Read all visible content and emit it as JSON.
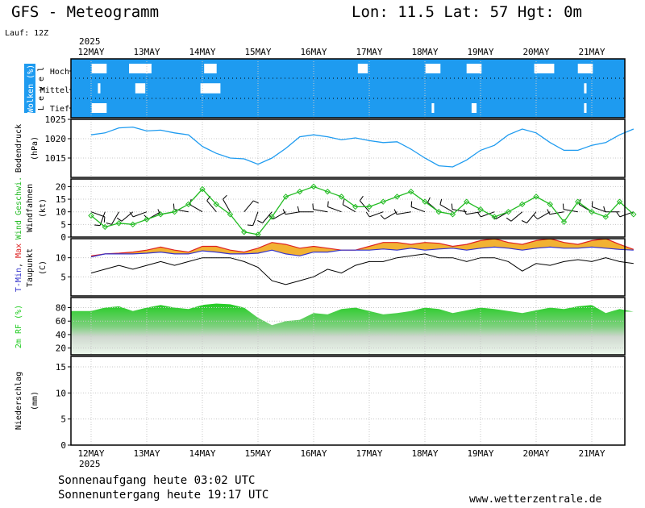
{
  "header": {
    "title": "GFS - Meteogramm",
    "location": "Lon: 11.5 Lat: 57 Hgt: 0m",
    "run": "Lauf: 12Z",
    "year": "2025"
  },
  "footer": {
    "sunrise": "Sonnenaufgang heute 03:02 UTC",
    "sunset": "Sonnenuntergang heute 19:17 UTC",
    "website": "www.wetterzentrale.de"
  },
  "colors": {
    "cloud": "#1e9bf0",
    "pressure": "#1e9bf0",
    "wind": "#22bb22",
    "tmin": "#3333cc",
    "tmax": "#dd2222",
    "temp_fill": "#f2b233",
    "rh": "#22cc22"
  },
  "chart_data": [
    {
      "type": "heatmap",
      "panel": "clouds",
      "ylabel": "Wolken (%)",
      "level_axis_label": "L e v e l",
      "levels": [
        "Hoch",
        "Mittel",
        "Tief"
      ],
      "days": [
        "12MAY",
        "13MAY",
        "14MAY",
        "15MAY",
        "16MAY",
        "17MAY",
        "18MAY",
        "19MAY",
        "20MAY",
        "21MAY"
      ],
      "hoch_cover": [
        0.7,
        0.55,
        0.75,
        1.0,
        1.0,
        0.8,
        0.7,
        0.7,
        0.6,
        0.7
      ],
      "mittel_cover": [
        0.95,
        0.8,
        0.6,
        1.0,
        1.0,
        1.0,
        1.0,
        1.0,
        1.0,
        0.95
      ],
      "tief_cover": [
        0.7,
        1.0,
        1.0,
        1.0,
        1.0,
        1.0,
        0.95,
        0.9,
        1.0,
        0.95
      ]
    },
    {
      "type": "line",
      "panel": "pressure",
      "ylabel": "Bodendruck",
      "unit": "(hPa)",
      "ylim": [
        1010,
        1025
      ],
      "yticks": [
        1015,
        1020,
        1025
      ],
      "x": [
        0,
        0.25,
        0.5,
        0.75,
        1,
        1.25,
        1.5,
        1.75,
        2,
        2.25,
        2.5,
        2.75,
        3,
        3.25,
        3.5,
        3.75,
        4,
        4.25,
        4.5,
        4.75,
        5,
        5.25,
        5.5,
        5.75,
        6,
        6.25,
        6.5,
        6.75,
        7,
        7.25,
        7.5,
        7.75,
        8,
        8.25,
        8.5,
        8.75,
        9,
        9.25,
        9.5,
        9.75
      ],
      "values": [
        1021.0,
        1021.5,
        1022.8,
        1023.0,
        1022.0,
        1022.2,
        1021.5,
        1021.0,
        1018.0,
        1016.2,
        1015.0,
        1014.8,
        1013.4,
        1015.0,
        1017.5,
        1020.5,
        1021.0,
        1020.5,
        1019.7,
        1020.2,
        1019.5,
        1019.0,
        1019.2,
        1017.3,
        1015.0,
        1013.0,
        1012.7,
        1014.5,
        1017.0,
        1018.3,
        1021.0,
        1022.5,
        1021.5,
        1019.0,
        1017.0,
        1017.0,
        1018.3,
        1019.0,
        1021.0,
        1022.5
      ],
      "grid": true
    },
    {
      "type": "line",
      "panel": "wind",
      "ylabel": "Wind Geschwi.",
      "ylabel2": "Windfahnen",
      "unit": "(kt)",
      "ylim": [
        0,
        23
      ],
      "yticks": [
        0,
        5,
        10,
        15,
        20
      ],
      "x": [
        0,
        0.25,
        0.5,
        0.75,
        1,
        1.25,
        1.5,
        1.75,
        2,
        2.25,
        2.5,
        2.75,
        3,
        3.25,
        3.5,
        3.75,
        4,
        4.25,
        4.5,
        4.75,
        5,
        5.25,
        5.5,
        5.75,
        6,
        6.25,
        6.5,
        6.75,
        7,
        7.25,
        7.5,
        7.75,
        8,
        8.25,
        8.5,
        8.75,
        9,
        9.25,
        9.5,
        9.75
      ],
      "values": [
        8.5,
        4.0,
        5.5,
        5.0,
        7.0,
        9.0,
        10.0,
        13.0,
        19.0,
        13.0,
        9.0,
        2.0,
        1.0,
        8.0,
        16.0,
        18.0,
        20.0,
        18.0,
        16.0,
        12.0,
        12.0,
        14.0,
        16.0,
        18.0,
        14.0,
        10.0,
        9.0,
        14.0,
        11.0,
        8.0,
        10.0,
        13.0,
        16.0,
        13.0,
        6.0,
        14.0,
        10.0,
        8.0,
        14.0,
        9.0
      ],
      "barb_directions_deg": [
        110,
        200,
        210,
        230,
        250,
        240,
        260,
        280,
        300,
        320,
        330,
        40,
        200,
        220,
        240,
        260,
        270,
        280,
        290,
        300,
        320,
        250,
        240,
        260,
        290,
        310,
        300,
        280,
        260,
        250,
        240,
        230,
        220,
        240,
        260,
        280,
        300,
        290,
        270,
        250
      ],
      "grid": true
    },
    {
      "type": "line",
      "panel": "temperature",
      "ylabel_parts": [
        "T-Min",
        ", ",
        "Max"
      ],
      "ylabel2": "Taupunkt",
      "unit": "(C)",
      "ylim": [
        0,
        15
      ],
      "yticks": [
        5,
        10
      ],
      "x": [
        0,
        0.25,
        0.5,
        0.75,
        1,
        1.25,
        1.5,
        1.75,
        2,
        2.25,
        2.5,
        2.75,
        3,
        3.25,
        3.5,
        3.75,
        4,
        4.25,
        4.5,
        4.75,
        5,
        5.25,
        5.5,
        5.75,
        6,
        6.25,
        6.5,
        6.75,
        7,
        7.25,
        7.5,
        7.75,
        8,
        8.25,
        8.5,
        8.75,
        9,
        9.25,
        9.5,
        9.75
      ],
      "series": [
        {
          "name": "T-Min",
          "values": [
            10.2,
            11.0,
            11.0,
            11.0,
            11.2,
            11.5,
            11.0,
            11.0,
            11.8,
            11.5,
            11.0,
            11.0,
            11.2,
            12.0,
            11.0,
            10.5,
            11.5,
            11.5,
            12.0,
            12.0,
            12.0,
            12.3,
            12.0,
            12.5,
            12.0,
            12.3,
            12.5,
            12.0,
            12.5,
            12.8,
            12.5,
            12.0,
            12.5,
            12.8,
            12.5,
            12.5,
            12.8,
            12.5,
            12.2,
            12.0
          ]
        },
        {
          "name": "Max",
          "values": [
            10.5,
            11.0,
            11.2,
            11.5,
            12.0,
            12.8,
            12.0,
            11.5,
            13.0,
            13.0,
            12.0,
            11.5,
            12.5,
            14.0,
            13.5,
            12.5,
            13.0,
            12.5,
            12.0,
            12.0,
            13.0,
            14.0,
            14.0,
            13.5,
            14.0,
            13.8,
            13.0,
            13.5,
            14.5,
            15.0,
            14.0,
            13.5,
            14.5,
            15.0,
            14.0,
            13.5,
            14.5,
            15.0,
            13.5,
            12.2
          ]
        },
        {
          "name": "Taupunkt",
          "values": [
            6.0,
            7.0,
            8.0,
            7.0,
            8.0,
            9.0,
            8.0,
            9.0,
            10.0,
            10.0,
            10.0,
            9.0,
            7.5,
            4.0,
            3.0,
            4.0,
            5.0,
            7.0,
            6.0,
            8.0,
            9.0,
            9.0,
            10.0,
            10.5,
            11.0,
            10.0,
            10.0,
            9.0,
            10.0,
            10.0,
            9.0,
            6.5,
            8.5,
            8.0,
            9.0,
            9.5,
            9.0,
            10.0,
            9.0,
            8.5
          ]
        }
      ],
      "grid": true
    },
    {
      "type": "area",
      "panel": "humidity",
      "ylabel": "2m RF (%)",
      "ylim": [
        10,
        95
      ],
      "yticks": [
        20,
        40,
        60,
        80
      ],
      "x": [
        0,
        0.25,
        0.5,
        0.75,
        1,
        1.25,
        1.5,
        1.75,
        2,
        2.25,
        2.5,
        2.75,
        3,
        3.25,
        3.5,
        3.75,
        4,
        4.25,
        4.5,
        4.75,
        5,
        5.25,
        5.5,
        5.75,
        6,
        6.25,
        6.5,
        6.75,
        7,
        7.25,
        7.5,
        7.75,
        8,
        8.25,
        8.5,
        8.75,
        9,
        9.25,
        9.5,
        9.75
      ],
      "values": [
        75,
        80,
        82,
        75,
        80,
        84,
        80,
        78,
        84,
        86,
        85,
        80,
        65,
        54,
        60,
        62,
        72,
        70,
        78,
        80,
        75,
        70,
        72,
        75,
        80,
        78,
        72,
        76,
        80,
        78,
        75,
        72,
        76,
        80,
        78,
        82,
        84,
        72,
        78,
        74
      ],
      "grid": true
    },
    {
      "type": "bar",
      "panel": "precipitation",
      "ylabel": "Niederschlag",
      "unit": "(mm)",
      "ylim": [
        0,
        17
      ],
      "yticks": [
        0,
        5,
        10,
        15
      ],
      "values": [],
      "grid": true
    }
  ],
  "x_axis": {
    "days": [
      "12MAY",
      "13MAY",
      "14MAY",
      "15MAY",
      "16MAY",
      "17MAY",
      "18MAY",
      "19MAY",
      "20MAY",
      "21MAY"
    ],
    "year_label": "2025"
  }
}
